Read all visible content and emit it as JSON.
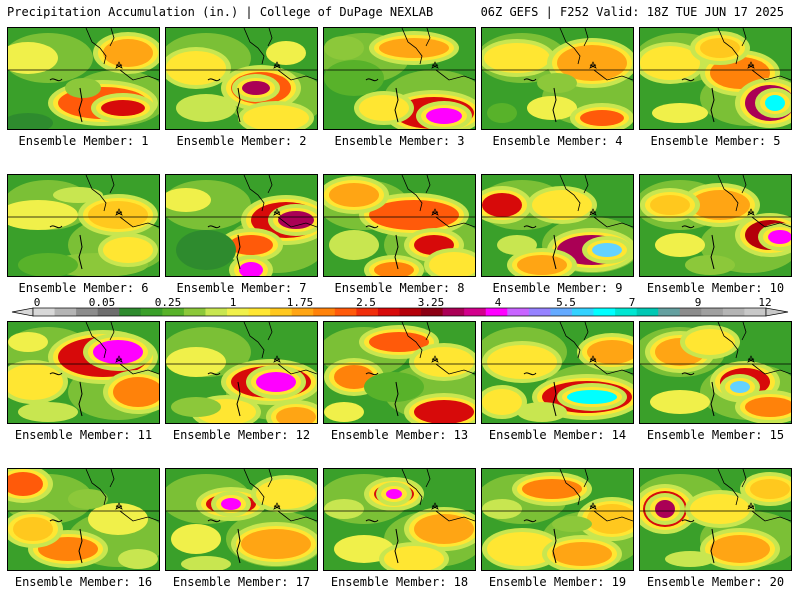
{
  "header": {
    "title": "Precipitation Accumulation (in.) | College of DuPage NEXLAB",
    "run_info": "06Z GEFS | F252 Valid: 18Z TUE JUN 17 2025"
  },
  "panels": [
    {
      "caption": "Ensemble Member: 1"
    },
    {
      "caption": "Ensemble Member: 2"
    },
    {
      "caption": "Ensemble Member: 3"
    },
    {
      "caption": "Ensemble Member: 4"
    },
    {
      "caption": "Ensemble Member: 5"
    },
    {
      "caption": "Ensemble Member: 6"
    },
    {
      "caption": "Ensemble Member: 7"
    },
    {
      "caption": "Ensemble Member: 8"
    },
    {
      "caption": "Ensemble Member: 9"
    },
    {
      "caption": "Ensemble Member: 10"
    },
    {
      "caption": "Ensemble Member: 11"
    },
    {
      "caption": "Ensemble Member: 12"
    },
    {
      "caption": "Ensemble Member: 13"
    },
    {
      "caption": "Ensemble Member: 14"
    },
    {
      "caption": "Ensemble Member: 15"
    },
    {
      "caption": "Ensemble Member: 16"
    },
    {
      "caption": "Ensemble Member: 17"
    },
    {
      "caption": "Ensemble Member: 18"
    },
    {
      "caption": "Ensemble Member: 19"
    },
    {
      "caption": "Ensemble Member: 20"
    }
  ],
  "colorbar": {
    "tick_labels": [
      "0",
      "0.05",
      "0.25",
      "1",
      "1.75",
      "2.5",
      "3.25",
      "4",
      "5.5",
      "7",
      "9",
      "12"
    ],
    "colors": [
      "#d8d8d8",
      "#b4b4b4",
      "#8c8c8c",
      "#6e6e6e",
      "#2e8b2e",
      "#3aa02a",
      "#58b22a",
      "#8cc83a",
      "#c8e650",
      "#f0f04a",
      "#ffe632",
      "#ffc81e",
      "#ffa514",
      "#ff820a",
      "#ff5a0a",
      "#f02d0a",
      "#d70a0a",
      "#b4000a",
      "#8c0014",
      "#aa0055",
      "#d2008c",
      "#ff00ff",
      "#c864ff",
      "#9682ff",
      "#64aaff",
      "#32d2ff",
      "#00ffff",
      "#00e6d2",
      "#00c8b4",
      "#64a0a0",
      "#8c8c8c",
      "#a0a0a0",
      "#b4b4b4",
      "#c8c8c8"
    ]
  }
}
